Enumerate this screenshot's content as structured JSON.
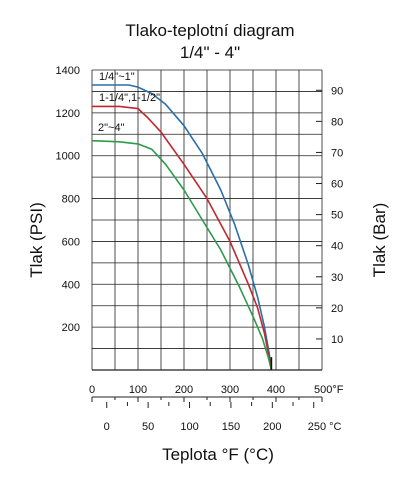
{
  "chart_data": {
    "type": "line",
    "title": "Tlako-teplotní diagram",
    "subtitle": "1/4\" - 4\"",
    "ylabel_left": "Tlak (PSI)",
    "ylabel_right": "Tlak (Bar)",
    "xlabel": "Teplota °F (°C)",
    "y_left_range": [
      0,
      1400
    ],
    "y_left_ticks": [
      "200",
      "400",
      "600",
      "800",
      "1000",
      "1200",
      "1400"
    ],
    "y_right_ticks": [
      "10",
      "20",
      "30",
      "40",
      "50",
      "60",
      "70",
      "80",
      "90"
    ],
    "x_range_f": [
      0,
      500
    ],
    "x_ticks_f": [
      "0",
      "100",
      "200",
      "300",
      "400",
      "500°F"
    ],
    "x_ticks_c": [
      "0",
      "50",
      "100",
      "150",
      "200",
      "250 °C"
    ],
    "grid": true,
    "colors": {
      "series1": "#2b6fa8",
      "series2": "#c0282d",
      "series3": "#2e9a4a",
      "grid": "#222222"
    },
    "series": [
      {
        "name": "1/4\"~1\"",
        "color": "#2b6fa8",
        "x": [
          0,
          80,
          100,
          130,
          160,
          200,
          240,
          280,
          310,
          340,
          360,
          375,
          385,
          390
        ],
        "y": [
          1330,
          1330,
          1320,
          1290,
          1240,
          1140,
          1010,
          840,
          680,
          490,
          340,
          200,
          80,
          0
        ]
      },
      {
        "name": "1-1/4\",1-1/2\"",
        "color": "#c0282d",
        "x": [
          0,
          60,
          100,
          120,
          150,
          200,
          250,
          300,
          340,
          360,
          375,
          385,
          390
        ],
        "y": [
          1230,
          1230,
          1220,
          1180,
          1110,
          960,
          800,
          600,
          400,
          290,
          170,
          60,
          0
        ]
      },
      {
        "name": "2\"~4\"",
        "color": "#2e9a4a",
        "x": [
          0,
          60,
          100,
          130,
          160,
          200,
          240,
          280,
          320,
          350,
          370,
          383,
          390
        ],
        "y": [
          1070,
          1065,
          1055,
          1030,
          960,
          840,
          700,
          560,
          390,
          250,
          150,
          60,
          0
        ]
      }
    ]
  }
}
